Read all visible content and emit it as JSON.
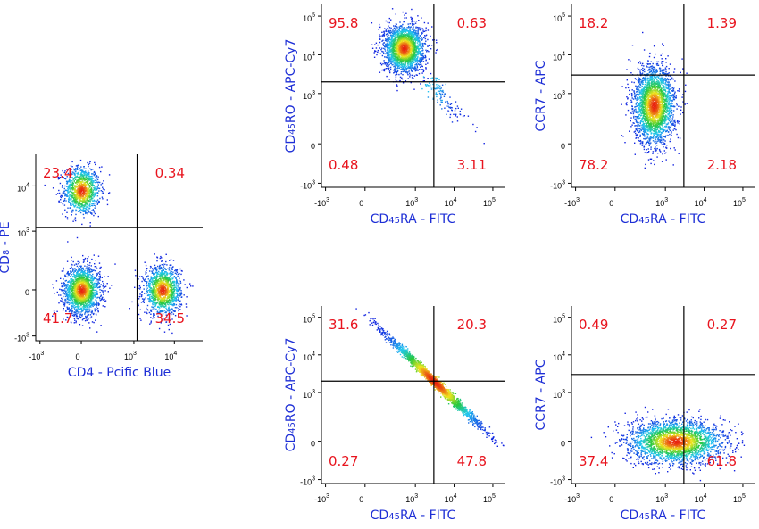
{
  "colors": {
    "axis": "#000000",
    "quadrant_line": "#000000",
    "percent_text": "#e8141e",
    "axis_label": "#1e2fd6",
    "density_low": "#1020e0",
    "density_mid": "#20c8f0",
    "density_high": "#e82010"
  },
  "chart_data": [
    {
      "id": "cd4-cd8",
      "type": "scatter",
      "xlabel": "CD4 - Pcific Blue",
      "ylabel": "CD8 - PE",
      "ylabel_parts": [
        "CD",
        "8",
        " - PE"
      ],
      "xlabel_parts": [
        "CD4 - Pcific Blue"
      ],
      "x_ticks": [
        {
          "base": "-10",
          "exp": "3"
        },
        {
          "base": "0",
          "exp": ""
        },
        {
          "base": "10",
          "exp": "3"
        },
        {
          "base": "10",
          "exp": "4"
        }
      ],
      "y_ticks": [
        {
          "base": "-10",
          "exp": "3"
        },
        {
          "base": "0",
          "exp": ""
        },
        {
          "base": "10",
          "exp": "3"
        },
        {
          "base": "10",
          "exp": "4"
        }
      ],
      "x_tick_values": [
        -1000,
        0,
        1000,
        10000
      ],
      "y_tick_values": [
        -1000,
        0,
        1000,
        10000
      ],
      "xlim": [
        -1500,
        50000
      ],
      "ylim": [
        -1500,
        50000
      ],
      "gate_x": 1200,
      "gate_y": 1200,
      "quadrants": {
        "upper_left": "23.4",
        "upper_right": "0.34",
        "lower_left": "41.7",
        "lower_right": "34.5"
      },
      "populations": [
        {
          "x": 0,
          "y": 8000,
          "count": 1100
        },
        {
          "x": 0,
          "y": 0,
          "count": 1800
        },
        {
          "x": 5000,
          "y": 0,
          "count": 1300
        }
      ]
    },
    {
      "id": "ra-ro-top",
      "type": "scatter",
      "xlabel": "CD45RA - FITC",
      "ylabel": "CD45RO - APC-Cy7",
      "xlabel_parts": [
        "CD",
        "45",
        "RA - FITC"
      ],
      "ylabel_parts": [
        "CD",
        "45",
        "RO - APC-Cy7"
      ],
      "x_ticks": [
        {
          "base": "-10",
          "exp": "3"
        },
        {
          "base": "0",
          "exp": ""
        },
        {
          "base": "10",
          "exp": "3"
        },
        {
          "base": "10",
          "exp": "4"
        },
        {
          "base": "10",
          "exp": "5"
        }
      ],
      "y_ticks": [
        {
          "base": "-10",
          "exp": "3"
        },
        {
          "base": "0",
          "exp": ""
        },
        {
          "base": "10",
          "exp": "3"
        },
        {
          "base": "10",
          "exp": "4"
        },
        {
          "base": "10",
          "exp": "5"
        }
      ],
      "x_tick_values": [
        -1000,
        0,
        1000,
        10000,
        100000
      ],
      "y_tick_values": [
        -1000,
        0,
        1000,
        10000,
        100000
      ],
      "xlim": [
        -1500,
        200000
      ],
      "ylim": [
        -1500,
        200000
      ],
      "gate_x": 3000,
      "gate_y": 2000,
      "quadrants": {
        "upper_left": "95.8",
        "upper_right": "0.63",
        "lower_left": "0.48",
        "lower_right": "3.11"
      },
      "populations": [
        {
          "x": 500,
          "y": 15000,
          "count": 2200
        },
        {
          "x": 8000,
          "y": 150,
          "count": 120
        }
      ]
    },
    {
      "id": "ra-ccr7-top",
      "type": "scatter",
      "xlabel": "CD45RA - FITC",
      "ylabel": "CCR7 - APC",
      "xlabel_parts": [
        "CD",
        "45",
        "RA - FITC"
      ],
      "ylabel_parts": [
        "CCR7 - APC"
      ],
      "x_ticks": [
        {
          "base": "-10",
          "exp": "3"
        },
        {
          "base": "0",
          "exp": ""
        },
        {
          "base": "10",
          "exp": "3"
        },
        {
          "base": "10",
          "exp": "4"
        },
        {
          "base": "10",
          "exp": "5"
        }
      ],
      "y_ticks": [
        {
          "base": "-10",
          "exp": "3"
        },
        {
          "base": "0",
          "exp": ""
        },
        {
          "base": "10",
          "exp": "3"
        },
        {
          "base": "10",
          "exp": "4"
        },
        {
          "base": "10",
          "exp": "5"
        }
      ],
      "x_tick_values": [
        -1000,
        0,
        1000,
        10000,
        100000
      ],
      "y_tick_values": [
        -1000,
        0,
        1000,
        10000,
        100000
      ],
      "xlim": [
        -1500,
        200000
      ],
      "ylim": [
        -1500,
        200000
      ],
      "gate_x": 3000,
      "gate_y": 3000,
      "quadrants": {
        "upper_left": "18.2",
        "upper_right": "1.39",
        "lower_left": "78.2",
        "lower_right": "2.18"
      },
      "populations": [
        {
          "x": 500,
          "y": 500,
          "count": 2600
        }
      ]
    },
    {
      "id": "ra-ro-bottom",
      "type": "scatter",
      "xlabel": "CD45RA - FITC",
      "ylabel": "CD45RO - APC-Cy7",
      "xlabel_parts": [
        "CD",
        "45",
        "RA - FITC"
      ],
      "ylabel_parts": [
        "CD",
        "45",
        "RO - APC-Cy7"
      ],
      "x_ticks": [
        {
          "base": "-10",
          "exp": "3"
        },
        {
          "base": "0",
          "exp": ""
        },
        {
          "base": "10",
          "exp": "3"
        },
        {
          "base": "10",
          "exp": "4"
        },
        {
          "base": "10",
          "exp": "5"
        }
      ],
      "y_ticks": [
        {
          "base": "-10",
          "exp": "3"
        },
        {
          "base": "0",
          "exp": ""
        },
        {
          "base": "10",
          "exp": "3"
        },
        {
          "base": "10",
          "exp": "4"
        },
        {
          "base": "10",
          "exp": "5"
        }
      ],
      "x_tick_values": [
        -1000,
        0,
        1000,
        10000,
        100000
      ],
      "y_tick_values": [
        -1000,
        0,
        1000,
        10000,
        100000
      ],
      "xlim": [
        -1500,
        200000
      ],
      "ylim": [
        -1500,
        200000
      ],
      "gate_x": 3000,
      "gate_y": 2000,
      "quadrants": {
        "upper_left": "31.6",
        "upper_right": "20.3",
        "lower_left": "0.27",
        "lower_right": "47.8"
      },
      "populations": [
        {
          "x": 3000,
          "y": 2000,
          "count": 2000,
          "diagonal": true
        }
      ]
    },
    {
      "id": "ra-ccr7-bottom",
      "type": "scatter",
      "xlabel": "CD45RA - FITC",
      "ylabel": "CCR7 - APC",
      "xlabel_parts": [
        "CD",
        "45",
        "RA - FITC"
      ],
      "ylabel_parts": [
        "CCR7 - APC"
      ],
      "x_ticks": [
        {
          "base": "-10",
          "exp": "3"
        },
        {
          "base": "0",
          "exp": ""
        },
        {
          "base": "10",
          "exp": "3"
        },
        {
          "base": "10",
          "exp": "4"
        },
        {
          "base": "10",
          "exp": "5"
        }
      ],
      "y_ticks": [
        {
          "base": "-10",
          "exp": "3"
        },
        {
          "base": "0",
          "exp": ""
        },
        {
          "base": "10",
          "exp": "3"
        },
        {
          "base": "10",
          "exp": "4"
        },
        {
          "base": "10",
          "exp": "5"
        }
      ],
      "x_tick_values": [
        -1000,
        0,
        1000,
        10000,
        100000
      ],
      "y_tick_values": [
        -1000,
        0,
        1000,
        10000,
        100000
      ],
      "xlim": [
        -1500,
        200000
      ],
      "ylim": [
        -1500,
        200000
      ],
      "gate_x": 3000,
      "gate_y": 3000,
      "quadrants": {
        "upper_left": "0.49",
        "upper_right": "0.27",
        "lower_left": "37.4",
        "lower_right": "61.8"
      },
      "populations": [
        {
          "x": 1800,
          "y": 0,
          "count": 2600,
          "wide": true
        }
      ]
    }
  ]
}
